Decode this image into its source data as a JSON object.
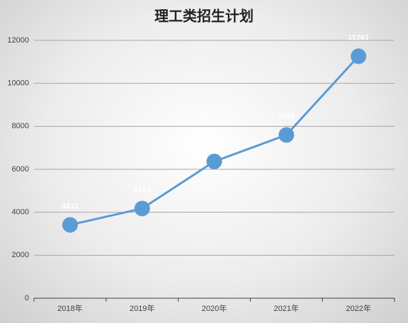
{
  "chart_data": {
    "type": "line",
    "title": "理工类招生计划",
    "categories": [
      "2018年",
      "2019年",
      "2020年",
      "2021年",
      "2022年"
    ],
    "values": [
      3412,
      4174,
      6364,
      7598,
      11261
    ],
    "color": "#5b9bd5",
    "ylim": [
      0,
      12000
    ],
    "yticks": [
      0,
      2000,
      4000,
      6000,
      8000,
      10000,
      12000
    ],
    "grid": true
  }
}
